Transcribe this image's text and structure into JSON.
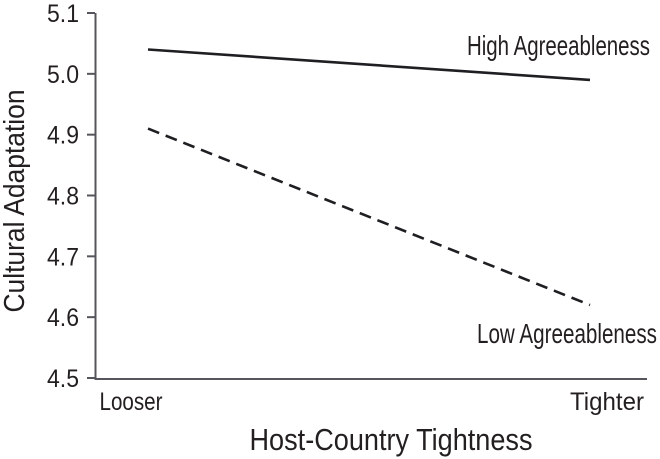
{
  "figure": {
    "description": "Interaction plot of agreeableness and host-country tightness on cultural adaptation"
  },
  "colors": {
    "background": "#ffffff",
    "text": "#231f20",
    "data_line": "#1f1f23",
    "axis": "#55565b"
  },
  "chart_data": {
    "type": "line",
    "title": "",
    "xlabel": "Host-Country Tightness",
    "ylabel": "Cultural Adaptation",
    "categories": [
      "Looser",
      "Tighter"
    ],
    "series": [
      {
        "name": "High Agreeableness",
        "values": [
          5.04,
          4.99
        ],
        "line_style": "solid",
        "label_position": "above-right-end"
      },
      {
        "name": "Low Agreeableness",
        "values": [
          4.91,
          4.62
        ],
        "line_style": "dashed",
        "label_position": "below-right-end"
      }
    ],
    "ylim": [
      4.5,
      5.1
    ],
    "yticks": [
      4.5,
      4.6,
      4.7,
      4.8,
      4.9,
      5.0,
      5.1
    ],
    "ytick_format_decimals": 1,
    "grid": false,
    "legend_position": "inline-annotations"
  }
}
